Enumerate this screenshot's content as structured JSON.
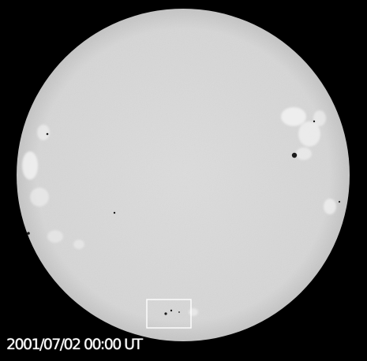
{
  "image": {
    "kind": "solar full-disk image",
    "background_color": "#000000",
    "disk_color": "#d8d8d8",
    "box_color": "#ffffff"
  },
  "caption": {
    "timestamp": "2001/07/02 00:00 UT"
  }
}
